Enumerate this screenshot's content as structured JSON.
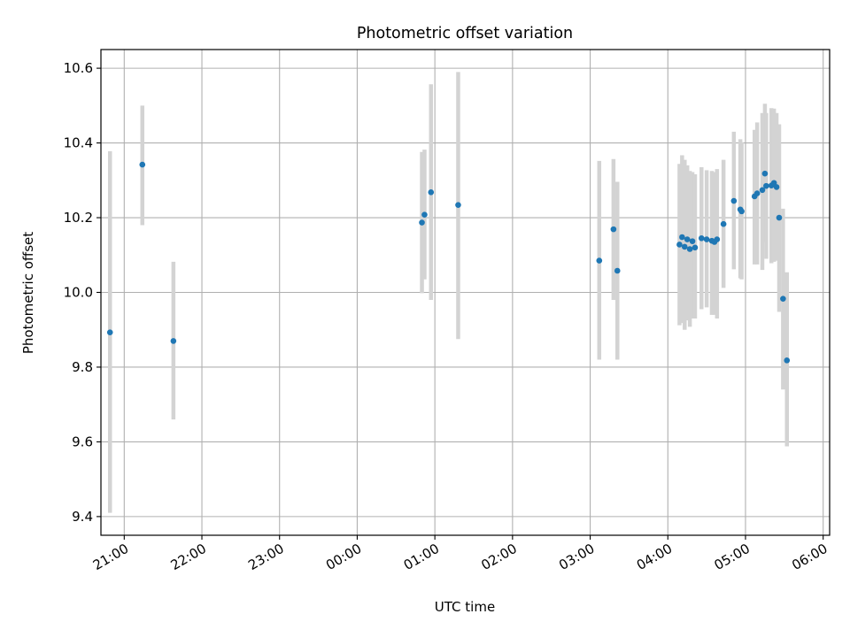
{
  "chart_data": {
    "type": "scatter",
    "title": "Photometric offset variation",
    "xlabel": "UTC time",
    "ylabel": "Photometric offset",
    "x_is_time": true,
    "xlim": [
      "20:42",
      "06:05"
    ],
    "ylim": [
      9.35,
      10.65
    ],
    "x_ticks": [
      "21:00",
      "22:00",
      "23:00",
      "00:00",
      "01:00",
      "02:00",
      "03:00",
      "04:00",
      "05:00",
      "06:00"
    ],
    "y_ticks": [
      "9.4",
      "9.6",
      "9.8",
      "10.0",
      "10.2",
      "10.4",
      "10.6"
    ],
    "grid": true,
    "colors": {
      "point": "#1f77b4",
      "errorbar": "#d3d3d3",
      "grid": "#b0b0b0"
    },
    "points": [
      {
        "t": "20:49",
        "y": 9.893,
        "lo": 9.41,
        "hi": 10.378
      },
      {
        "t": "21:14",
        "y": 10.342,
        "lo": 10.18,
        "hi": 10.5
      },
      {
        "t": "21:38",
        "y": 9.87,
        "lo": 9.66,
        "hi": 10.082
      },
      {
        "t": "00:50",
        "y": 10.187,
        "lo": 9.998,
        "hi": 10.376
      },
      {
        "t": "00:52",
        "y": 10.208,
        "lo": 10.035,
        "hi": 10.382
      },
      {
        "t": "00:57",
        "y": 10.268,
        "lo": 9.98,
        "hi": 10.557
      },
      {
        "t": "01:18",
        "y": 10.234,
        "lo": 9.875,
        "hi": 10.59
      },
      {
        "t": "03:07",
        "y": 10.085,
        "lo": 9.82,
        "hi": 10.352
      },
      {
        "t": "03:18",
        "y": 10.169,
        "lo": 9.98,
        "hi": 10.357
      },
      {
        "t": "03:21",
        "y": 10.058,
        "lo": 9.82,
        "hi": 10.296
      },
      {
        "t": "04:09",
        "y": 10.128,
        "lo": 9.912,
        "hi": 10.344
      },
      {
        "t": "04:11",
        "y": 10.148,
        "lo": 9.918,
        "hi": 10.367
      },
      {
        "t": "04:13",
        "y": 10.122,
        "lo": 9.9,
        "hi": 10.355
      },
      {
        "t": "04:15",
        "y": 10.142,
        "lo": 9.925,
        "hi": 10.34
      },
      {
        "t": "04:17",
        "y": 10.116,
        "lo": 9.908,
        "hi": 10.325
      },
      {
        "t": "04:19",
        "y": 10.137,
        "lo": 9.93,
        "hi": 10.322
      },
      {
        "t": "04:21",
        "y": 10.12,
        "lo": 9.93,
        "hi": 10.316
      },
      {
        "t": "04:26",
        "y": 10.145,
        "lo": 9.955,
        "hi": 10.335
      },
      {
        "t": "04:30",
        "y": 10.142,
        "lo": 9.96,
        "hi": 10.327
      },
      {
        "t": "04:34",
        "y": 10.138,
        "lo": 9.94,
        "hi": 10.325
      },
      {
        "t": "04:36",
        "y": 10.135,
        "lo": 9.94,
        "hi": 10.322
      },
      {
        "t": "04:38",
        "y": 10.142,
        "lo": 9.93,
        "hi": 10.33
      },
      {
        "t": "04:43",
        "y": 10.183,
        "lo": 10.012,
        "hi": 10.355
      },
      {
        "t": "04:51",
        "y": 10.245,
        "lo": 10.062,
        "hi": 10.43
      },
      {
        "t": "04:56",
        "y": 10.222,
        "lo": 10.038,
        "hi": 10.41
      },
      {
        "t": "04:57",
        "y": 10.217,
        "lo": 10.035,
        "hi": 10.402
      },
      {
        "t": "05:07",
        "y": 10.257,
        "lo": 10.075,
        "hi": 10.435
      },
      {
        "t": "05:09",
        "y": 10.265,
        "lo": 10.075,
        "hi": 10.455
      },
      {
        "t": "05:13",
        "y": 10.274,
        "lo": 10.06,
        "hi": 10.48
      },
      {
        "t": "05:15",
        "y": 10.318,
        "lo": 10.135,
        "hi": 10.505
      },
      {
        "t": "05:16",
        "y": 10.285,
        "lo": 10.09,
        "hi": 10.48
      },
      {
        "t": "05:20",
        "y": 10.286,
        "lo": 10.078,
        "hi": 10.493
      },
      {
        "t": "05:22",
        "y": 10.293,
        "lo": 10.082,
        "hi": 10.492
      },
      {
        "t": "05:24",
        "y": 10.282,
        "lo": 10.085,
        "hi": 10.48
      },
      {
        "t": "05:26",
        "y": 10.2,
        "lo": 9.948,
        "hi": 10.45
      },
      {
        "t": "05:29",
        "y": 9.983,
        "lo": 9.74,
        "hi": 10.224
      },
      {
        "t": "05:32",
        "y": 9.818,
        "lo": 9.588,
        "hi": 10.054
      }
    ]
  }
}
